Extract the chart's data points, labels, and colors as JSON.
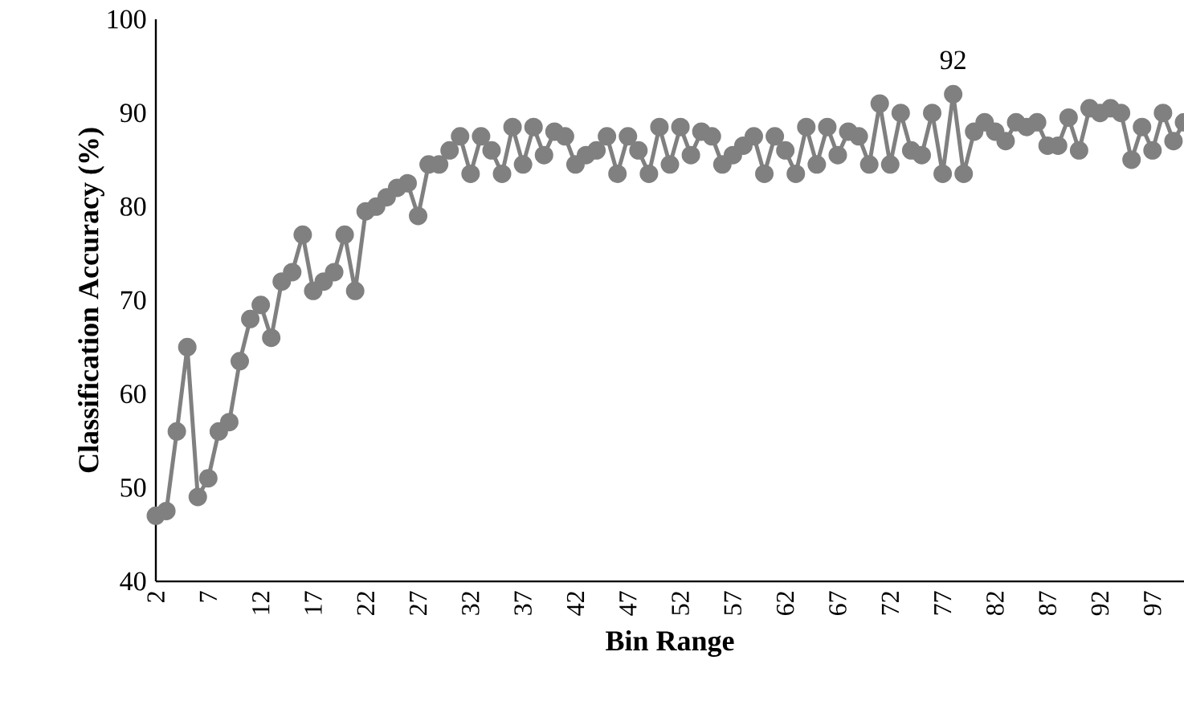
{
  "chart_data": {
    "type": "line",
    "xlabel": "Bin Range",
    "ylabel": "Classification Accuracy (%)",
    "categories": [
      "2",
      null,
      null,
      null,
      null,
      "7",
      null,
      null,
      null,
      null,
      "12",
      null,
      null,
      null,
      null,
      "17",
      null,
      null,
      null,
      null,
      "22",
      null,
      null,
      null,
      null,
      "27",
      null,
      null,
      null,
      null,
      "32",
      null,
      null,
      null,
      null,
      "37",
      null,
      null,
      null,
      null,
      "42",
      null,
      null,
      null,
      null,
      "47",
      null,
      null,
      null,
      null,
      "52",
      null,
      null,
      null,
      null,
      "57",
      null,
      null,
      null,
      null,
      "62",
      null,
      null,
      null,
      null,
      "67",
      null,
      null,
      null,
      null,
      "72",
      null,
      null,
      null,
      null,
      "77",
      null,
      null,
      null,
      null,
      "82",
      null,
      null,
      null,
      null,
      "87",
      null,
      null,
      null,
      null,
      "92",
      null,
      null,
      null,
      null,
      "97",
      null,
      null,
      null
    ],
    "values": [
      47,
      47.5,
      56,
      65,
      49,
      51,
      56,
      57,
      63.5,
      68,
      69.5,
      66,
      72,
      73,
      77,
      71,
      72,
      73,
      77,
      71,
      79.5,
      80,
      81,
      82,
      82.5,
      79,
      84.5,
      84.5,
      86,
      87.5,
      83.5,
      87.5,
      86,
      83.5,
      88.5,
      84.5,
      88.5,
      85.5,
      88,
      87.5,
      84.5,
      85.5,
      86,
      87.5,
      83.5,
      87.5,
      86,
      83.5,
      88.5,
      84.5,
      88.5,
      85.5,
      88,
      87.5,
      84.5,
      85.5,
      86.5,
      87.5,
      83.5,
      87.5,
      86,
      83.5,
      88.5,
      84.5,
      88.5,
      85.5,
      88,
      87.5,
      84.5,
      91,
      84.5,
      90,
      86,
      85.5,
      90,
      83.5,
      92,
      83.5,
      88,
      89,
      88,
      87,
      89,
      88.5,
      89,
      86.5,
      86.5,
      89.5,
      86,
      90.5,
      90,
      90.5,
      90,
      85,
      88.5,
      86,
      90,
      87,
      89
    ],
    "value_labels": [
      null,
      null,
      null,
      null,
      null,
      null,
      null,
      null,
      null,
      null,
      null,
      null,
      null,
      null,
      null,
      null,
      null,
      null,
      null,
      null,
      null,
      null,
      null,
      null,
      null,
      null,
      null,
      null,
      null,
      null,
      null,
      null,
      null,
      null,
      null,
      null,
      null,
      null,
      null,
      null,
      null,
      null,
      null,
      null,
      null,
      null,
      null,
      null,
      null,
      null,
      null,
      null,
      null,
      null,
      null,
      null,
      null,
      null,
      null,
      null,
      null,
      null,
      null,
      null,
      null,
      null,
      null,
      null,
      null,
      null,
      null,
      null,
      null,
      null,
      null,
      null,
      "92",
      null,
      null,
      null,
      null,
      null,
      null,
      null,
      null,
      null,
      null,
      null,
      null,
      null,
      null,
      null,
      null,
      null,
      null,
      null,
      null,
      null,
      null
    ],
    "color": "#808080",
    "marker": "circle",
    "line_style": "solid",
    "grid": false,
    "ylim": [
      40,
      100
    ],
    "yticks": [
      40,
      50,
      60,
      70,
      80,
      90,
      100
    ]
  }
}
